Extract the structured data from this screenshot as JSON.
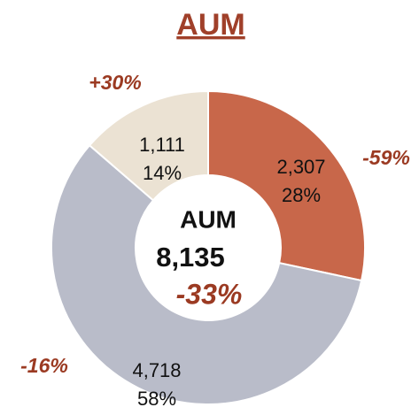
{
  "chart_data": {
    "type": "donut",
    "title": "AUM",
    "values": [
      2307,
      4718,
      1111
    ],
    "value_labels": [
      "2,307",
      "4,718",
      "1,111"
    ],
    "shares": [
      28,
      58,
      14
    ],
    "share_labels": [
      "28%",
      "58%",
      "14%"
    ],
    "changes": [
      -59,
      -16,
      30
    ],
    "change_labels": [
      "-59%",
      "-16%",
      "+30%"
    ],
    "colors": [
      "#c8674a",
      "#b9bcc9",
      "#ebe2d3"
    ],
    "center_label": "AUM",
    "total": 8135,
    "total_label": "8,135",
    "total_change": -33,
    "total_change_label": "-33%"
  }
}
